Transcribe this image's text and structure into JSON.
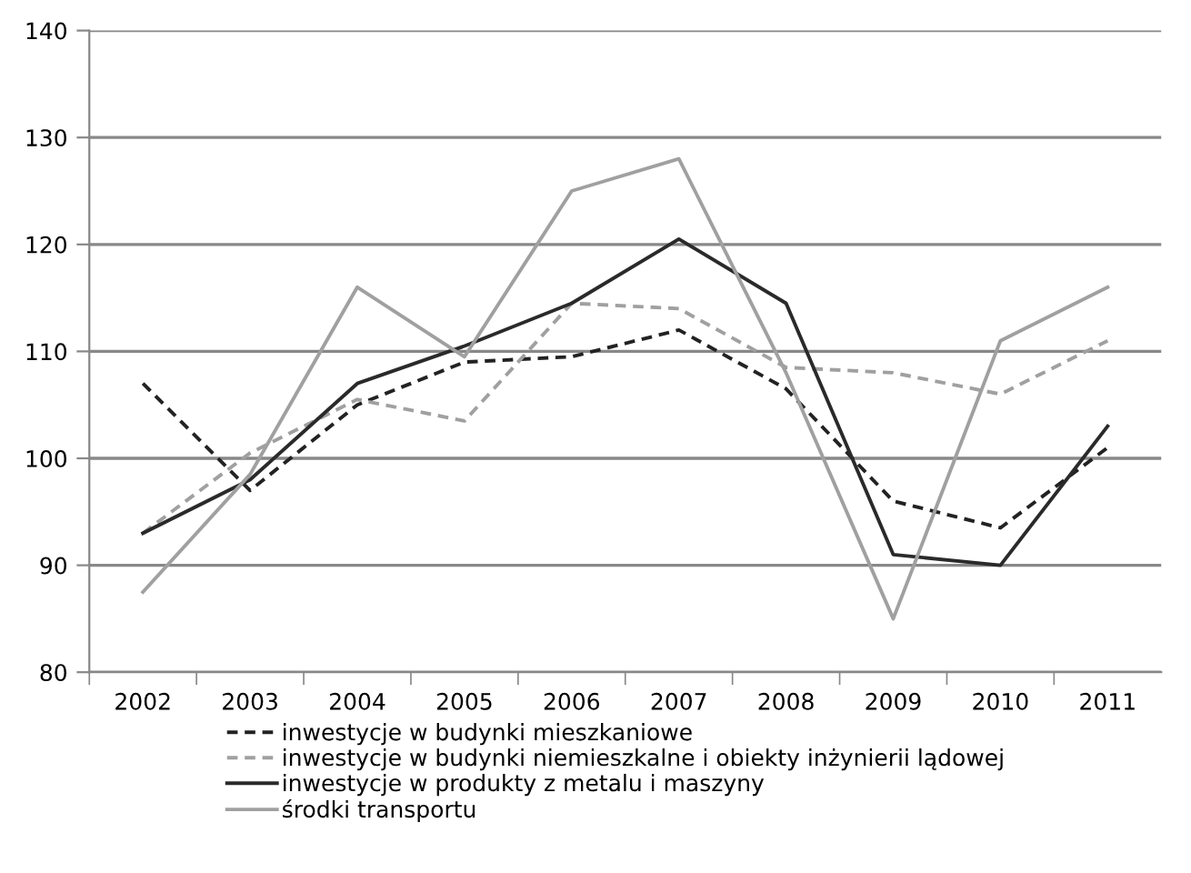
{
  "chart_data": {
    "type": "line",
    "categories": [
      "2002",
      "2003",
      "2004",
      "2005",
      "2006",
      "2007",
      "2008",
      "2009",
      "2010",
      "2011"
    ],
    "series": [
      {
        "name": "inwestycje w budynki mieszkaniowe",
        "color": "#222222",
        "line_style": "dashed",
        "values": [
          107,
          97,
          105,
          109,
          109.5,
          112,
          106.5,
          96,
          93.5,
          101
        ]
      },
      {
        "name": "inwestycje w budynki niemieszkalne i obiekty inżynierii lądowej",
        "color": "#a0a0a0",
        "line_style": "dashed",
        "values": [
          93,
          100.5,
          105.5,
          103.5,
          114.5,
          114,
          108.5,
          108,
          106,
          111
        ]
      },
      {
        "name": "inwestycje w produkty z metalu i maszyny",
        "color": "#2a2a2a",
        "line_style": "solid",
        "values": [
          93,
          98,
          107,
          110.5,
          114.5,
          120.5,
          114.5,
          91,
          90,
          103
        ]
      },
      {
        "name": "środki transportu",
        "color": "#a0a0a0",
        "line_style": "solid",
        "values": [
          87.5,
          98.5,
          116,
          109.5,
          125,
          128,
          108,
          85,
          111,
          116
        ]
      }
    ],
    "ylim": [
      80,
      140
    ],
    "yticks": [
      80,
      90,
      100,
      110,
      120,
      130,
      140
    ],
    "grid": "y",
    "legend": "bottom",
    "marker": "none"
  }
}
